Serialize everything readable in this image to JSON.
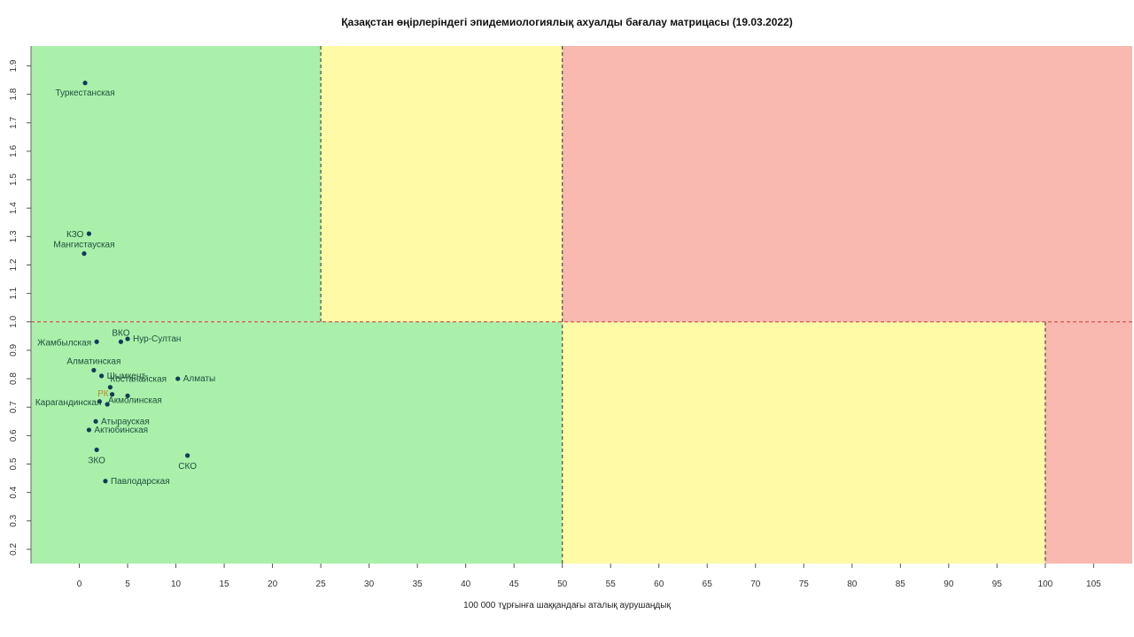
{
  "chart_data": {
    "type": "scatter",
    "title": "Қазақстан өңірлеріндегі эпидемиологиялық ахуалды бағалау матрицасы  (19.03.2022)",
    "xlabel": "100 000 тұрғынға шаққандағы аталық аурушаңдық",
    "ylabel": "",
    "xlim": [
      -5,
      109
    ],
    "ylim": [
      0.15,
      1.97
    ],
    "x_ticks": [
      0,
      5,
      10,
      15,
      20,
      25,
      30,
      35,
      40,
      45,
      50,
      55,
      60,
      65,
      70,
      75,
      80,
      85,
      90,
      95,
      100,
      105
    ],
    "y_ticks": [
      0.2,
      0.3,
      0.4,
      0.5,
      0.6,
      0.7,
      0.8,
      0.9,
      1.0,
      1.1,
      1.2,
      1.3,
      1.4,
      1.5,
      1.6,
      1.7,
      1.8,
      1.9
    ],
    "zones": [
      {
        "x0": -5,
        "x1": 25,
        "y0": 1.0,
        "y1": 1.97,
        "color": "#aaf0aa"
      },
      {
        "x0": 25,
        "x1": 50,
        "y0": 1.0,
        "y1": 1.97,
        "color": "#fefaa6"
      },
      {
        "x0": 50,
        "x1": 109,
        "y0": 1.0,
        "y1": 1.97,
        "color": "#f9b8b0"
      },
      {
        "x0": -5,
        "x1": 50,
        "y0": 0.15,
        "y1": 1.0,
        "color": "#aaf0aa"
      },
      {
        "x0": 50,
        "x1": 100,
        "y0": 0.15,
        "y1": 1.0,
        "color": "#fefaa6"
      },
      {
        "x0": 100,
        "x1": 109,
        "y0": 0.15,
        "y1": 1.0,
        "color": "#f9b8b0"
      }
    ],
    "threshold_lines": [
      {
        "orient": "v",
        "value": 25,
        "from": 1.0,
        "to": 1.97,
        "color": "#555555"
      },
      {
        "orient": "v",
        "value": 50,
        "from": 0.15,
        "to": 1.97,
        "color": "#555555"
      },
      {
        "orient": "v",
        "value": 100,
        "from": 0.15,
        "to": 1.0,
        "color": "#555555"
      },
      {
        "orient": "h",
        "value": 1.0,
        "from": -5,
        "to": 109,
        "color": "#d9534f"
      }
    ],
    "points": [
      {
        "label": "Туркестанская",
        "x": 0.6,
        "y": 1.84,
        "anchor": "middle",
        "dx": 0,
        "dy": 14,
        "color": "#1f4f3f"
      },
      {
        "label": "КЗО",
        "x": 1.0,
        "y": 1.31,
        "anchor": "end",
        "dx": -6,
        "dy": 4,
        "color": "#1f4f3f"
      },
      {
        "label": "Мангистауская",
        "x": 0.5,
        "y": 1.24,
        "anchor": "middle",
        "dx": 0,
        "dy": -7,
        "color": "#1f4f3f"
      },
      {
        "label": "ВКО",
        "x": 4.3,
        "y": 0.93,
        "anchor": "middle",
        "dx": 0,
        "dy": -7,
        "color": "#1f4f3f"
      },
      {
        "label": "Нур-Султан",
        "x": 5.0,
        "y": 0.94,
        "anchor": "start",
        "dx": 6,
        "dy": 3,
        "color": "#1f4f3f"
      },
      {
        "label": "Жамбылская",
        "x": 1.8,
        "y": 0.93,
        "anchor": "end",
        "dx": -6,
        "dy": 4,
        "color": "#1f4f3f"
      },
      {
        "label": "Алматинская",
        "x": 1.5,
        "y": 0.83,
        "anchor": "middle",
        "dx": 0,
        "dy": -7,
        "color": "#1f4f3f"
      },
      {
        "label": "Шымкент",
        "x": 2.3,
        "y": 0.81,
        "anchor": "start",
        "dx": 6,
        "dy": 3,
        "color": "#1f4f3f"
      },
      {
        "label": "Алматы",
        "x": 10.2,
        "y": 0.8,
        "anchor": "start",
        "dx": 6,
        "dy": 3,
        "color": "#1f4f3f"
      },
      {
        "label": "Костанайская",
        "x": 3.2,
        "y": 0.77,
        "anchor": "start",
        "dx": 0,
        "dy": -6,
        "color": "#1f4f3f"
      },
      {
        "label": "РК",
        "x": 3.4,
        "y": 0.745,
        "anchor": "end",
        "dx": -4,
        "dy": 2,
        "color": "#b8892a"
      },
      {
        "label": "Акмолинская",
        "x": 5.0,
        "y": 0.74,
        "anchor": "start",
        "dx": -22,
        "dy": 8,
        "color": "#1f4f3f"
      },
      {
        "label": "Карагандинская",
        "x": 2.1,
        "y": 0.72,
        "anchor": "end",
        "dx": 2,
        "dy": 4,
        "color": "#1f4f3f"
      },
      {
        "label": "",
        "x": 2.9,
        "y": 0.71,
        "anchor": "start",
        "dx": 0,
        "dy": 0,
        "color": "#1f4f3f"
      },
      {
        "label": "Атырауская",
        "x": 1.7,
        "y": 0.65,
        "anchor": "start",
        "dx": 6,
        "dy": 3,
        "color": "#1f4f3f"
      },
      {
        "label": "Актюбинская",
        "x": 1.0,
        "y": 0.62,
        "anchor": "start",
        "dx": 6,
        "dy": 3,
        "color": "#1f4f3f"
      },
      {
        "label": "ЗКО",
        "x": 1.8,
        "y": 0.55,
        "anchor": "middle",
        "dx": 0,
        "dy": 15,
        "color": "#1f4f3f"
      },
      {
        "label": "СКО",
        "x": 11.2,
        "y": 0.53,
        "anchor": "middle",
        "dx": 0,
        "dy": 15,
        "color": "#1f4f3f"
      },
      {
        "label": "Павлодарская",
        "x": 2.7,
        "y": 0.44,
        "anchor": "start",
        "dx": 6,
        "dy": 3,
        "color": "#1f4f3f"
      }
    ]
  }
}
